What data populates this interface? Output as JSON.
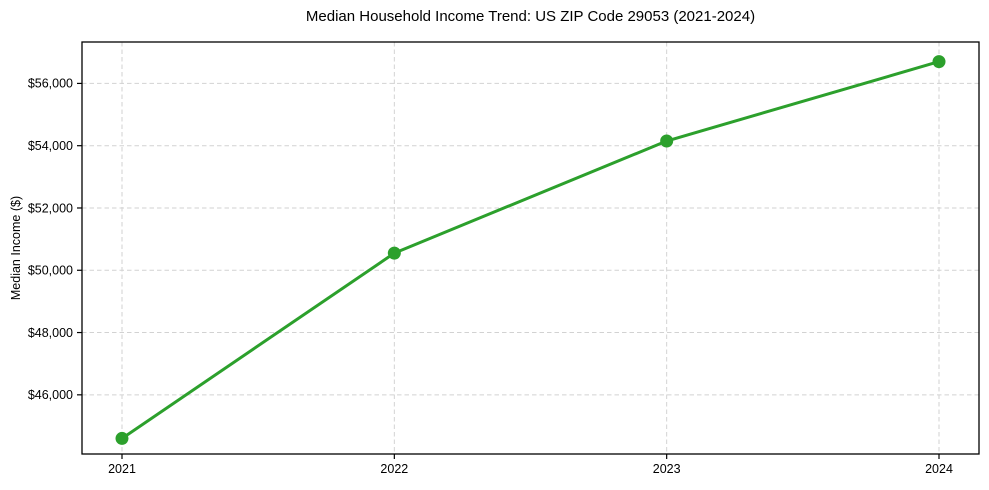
{
  "chart_data": {
    "type": "line",
    "title": "Median Household Income Trend: US ZIP Code 29053 (2021-2024)",
    "xlabel": "",
    "ylabel": "Median Income ($)",
    "categories": [
      "2021",
      "2022",
      "2023",
      "2024"
    ],
    "series": [
      {
        "name": "Median Household Income",
        "values": [
          44600,
          50550,
          54150,
          56700
        ]
      }
    ],
    "ylim": [
      44100,
      57330
    ],
    "yticks": [
      {
        "value": 46000,
        "label": "$46,000"
      },
      {
        "value": 48000,
        "label": "$48,000"
      },
      {
        "value": 50000,
        "label": "$50,000"
      },
      {
        "value": 52000,
        "label": "$52,000"
      },
      {
        "value": 54000,
        "label": "$54,000"
      },
      {
        "value": 56000,
        "label": "$56,000"
      }
    ],
    "grid": {
      "visible": true,
      "style": "dashed",
      "color": "#d2d2d2"
    },
    "legend": {
      "visible": false
    },
    "style": {
      "line_color": "#2ca02c",
      "marker_color": "#2ca02c",
      "marker": "circle",
      "spine_color": "#000000",
      "text_color": "#000000",
      "background": "#ffffff"
    }
  }
}
